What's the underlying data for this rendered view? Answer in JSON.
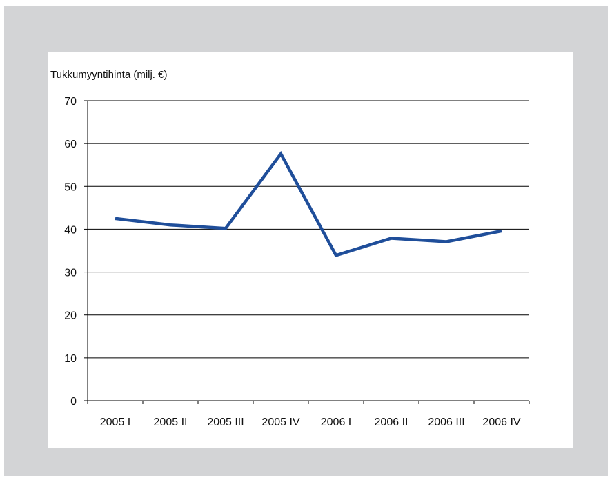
{
  "chart_data": {
    "type": "line",
    "ylabel": "Tukkumyyntihinta (milj. €)",
    "xlabel": "",
    "title": "",
    "categories": [
      "2005 I",
      "2005 II",
      "2005 III",
      "2005 IV",
      "2006 I",
      "2006 II",
      "2006 III",
      "2006 IV"
    ],
    "series": [
      {
        "values": [
          42.5,
          41.0,
          40.2,
          57.6,
          33.9,
          37.9,
          37.1,
          39.6
        ]
      }
    ],
    "ylim": [
      0,
      70
    ],
    "yticks": [
      "0",
      "10",
      "20",
      "30",
      "40",
      "50",
      "60",
      "70"
    ],
    "grid": true,
    "legend": "none",
    "colors": {
      "line": "#1f4e9a",
      "grid": "#000000",
      "background": "#d3d4d6",
      "panel": "#ffffff"
    }
  }
}
